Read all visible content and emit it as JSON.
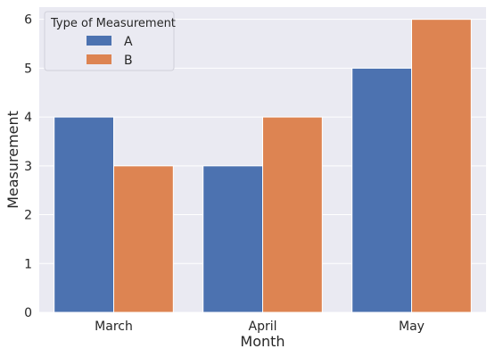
{
  "chart_data": {
    "type": "bar",
    "title": "",
    "xlabel": "Month",
    "ylabel": "Measurement",
    "categories": [
      "March",
      "April",
      "May"
    ],
    "series": [
      {
        "name": "A",
        "values": [
          4,
          3,
          5
        ],
        "color": "#4c72b0"
      },
      {
        "name": "B",
        "values": [
          3,
          4,
          6
        ],
        "color": "#dd8452"
      }
    ],
    "ylim": [
      0,
      6.25
    ],
    "yticks": [
      "0",
      "1",
      "2",
      "3",
      "4",
      "5",
      "6"
    ],
    "grid": true,
    "background": "#eaeaf2",
    "legend": {
      "title": "Type of Measurement",
      "placement": "top-left"
    }
  }
}
